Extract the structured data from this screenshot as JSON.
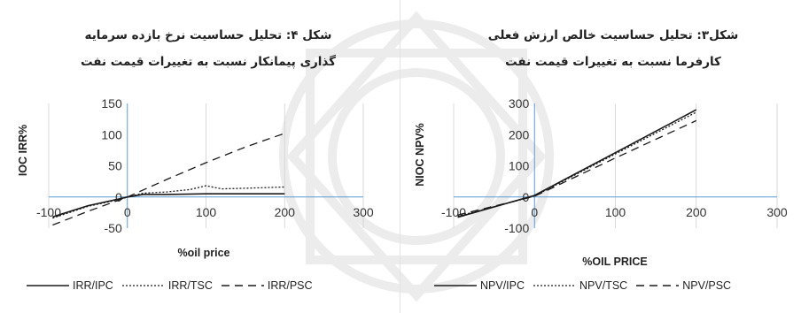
{
  "chart_data": [
    {
      "type": "line",
      "title_lines": [
        "شکل ۴: تحلیل حساسیت نرخ بازده سرمایه",
        "گذاری پیمانکار نسبت به تغییرات قیمت نفت"
      ],
      "xlabel": "%oil price",
      "ylabel": "IOC IRR%",
      "xlim": [
        -100,
        300
      ],
      "ylim": [
        -50,
        150
      ],
      "xticks": [
        "-100",
        "0",
        "100",
        "200",
        "300"
      ],
      "yticks": [
        "-50",
        "0",
        "50",
        "100",
        "150"
      ],
      "series": [
        {
          "name": "IRR/IPC",
          "dash": "solid",
          "x": [
            -95,
            -50,
            -10,
            0,
            20,
            50,
            100,
            150,
            200
          ],
          "y": [
            -32,
            -14,
            -3,
            0,
            4,
            4,
            5,
            5,
            5
          ]
        },
        {
          "name": "IRR/TSC",
          "dash": "dotted",
          "x": [
            -95,
            -50,
            -10,
            0,
            20,
            50,
            80,
            100,
            120,
            150,
            200
          ],
          "y": [
            -34,
            -15,
            -4,
            0,
            6,
            8,
            12,
            18,
            13,
            14,
            16
          ]
        },
        {
          "name": "IRR/PSC",
          "dash": "dashed",
          "x": [
            -95,
            -50,
            0,
            50,
            100,
            150,
            200
          ],
          "y": [
            -45,
            -23,
            0,
            28,
            55,
            80,
            102
          ]
        }
      ]
    },
    {
      "type": "line",
      "title_lines": [
        "شکل۳: تحلیل حساسیت خالص ارزش فعلی",
        "کارفرما نسبت به تغییرات قیمت نفت"
      ],
      "xlabel": "%OIL PRICE",
      "ylabel": "NIOC NPV%",
      "xlim": [
        -100,
        300
      ],
      "ylim": [
        -100,
        300
      ],
      "xticks": [
        "-100",
        "0",
        "100",
        "200",
        "300"
      ],
      "yticks": [
        "-100",
        "0",
        "100",
        "200",
        "300"
      ],
      "series": [
        {
          "name": "NPV/IPC",
          "dash": "solid",
          "x": [
            -95,
            0,
            100,
            200
          ],
          "y": [
            -65,
            5,
            142,
            280
          ]
        },
        {
          "name": "NPV/TSC",
          "dash": "dotted",
          "x": [
            -95,
            0,
            100,
            200
          ],
          "y": [
            -62,
            3,
            138,
            272
          ]
        },
        {
          "name": "NPV/PSC",
          "dash": "dashed",
          "x": [
            -95,
            0,
            100,
            200
          ],
          "y": [
            -58,
            2,
            125,
            245
          ]
        }
      ]
    }
  ],
  "legends": {
    "left": [
      "IRR/IPC",
      "IRR/TSC",
      "IRR/PSC"
    ],
    "right": [
      "NPV/IPC",
      "NPV/TSC",
      "NPV/PSC"
    ]
  },
  "colors": {
    "line": "#1a1a1a",
    "axis": "#5b9bd5",
    "grid": "#d0d0d0"
  }
}
